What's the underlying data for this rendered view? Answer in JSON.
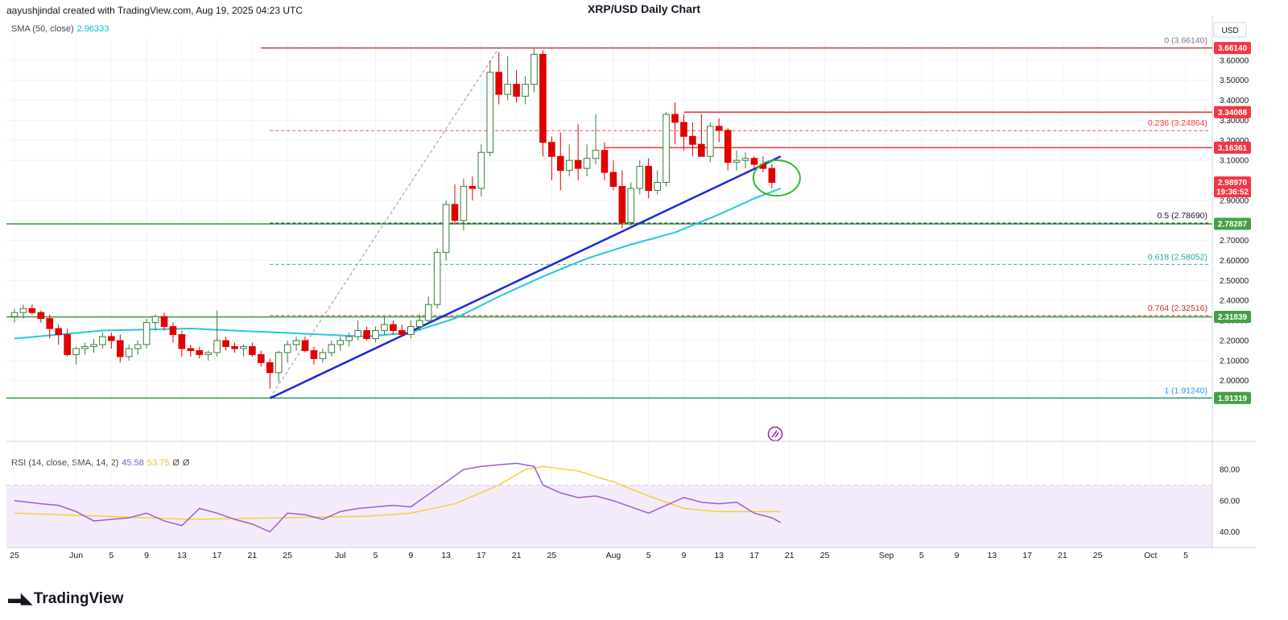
{
  "header": {
    "attribution": "aayushjindal created with TradingView.com, Aug 19, 2025 04:23 UTC",
    "title": "XRP/USD Daily Chart"
  },
  "indicators": {
    "sma_label": "SMA (50, close)",
    "sma_value": "2.96333",
    "rsi_label": "RSI (14, close, SMA, 14, 2)",
    "rsi_value": "45.58",
    "rsi_sma_value": "53.75",
    "rsi_extra_1": "Ø",
    "rsi_extra_2": "Ø"
  },
  "axis": {
    "currency": "USD",
    "price_ticks": [
      "2.00000",
      "2.10000",
      "2.20000",
      "2.30000",
      "2.40000",
      "2.50000",
      "2.60000",
      "2.70000",
      "2.80000",
      "2.90000",
      "3.10000",
      "3.20000",
      "3.30000",
      "3.40000",
      "3.50000",
      "3.60000"
    ],
    "rsi_ticks": [
      "40.00",
      "60.00",
      "80.00"
    ],
    "date_ticks": [
      {
        "label": "25",
        "bar": 0
      },
      {
        "label": "Jun",
        "bar": 7
      },
      {
        "label": "5",
        "bar": 11
      },
      {
        "label": "9",
        "bar": 15
      },
      {
        "label": "13",
        "bar": 19
      },
      {
        "label": "17",
        "bar": 23
      },
      {
        "label": "21",
        "bar": 27
      },
      {
        "label": "25",
        "bar": 31
      },
      {
        "label": "Jul",
        "bar": 37
      },
      {
        "label": "5",
        "bar": 41
      },
      {
        "label": "9",
        "bar": 45
      },
      {
        "label": "13",
        "bar": 49
      },
      {
        "label": "17",
        "bar": 53
      },
      {
        "label": "21",
        "bar": 57
      },
      {
        "label": "25",
        "bar": 61
      },
      {
        "label": "Aug",
        "bar": 68
      },
      {
        "label": "5",
        "bar": 72
      },
      {
        "label": "9",
        "bar": 76
      },
      {
        "label": "13",
        "bar": 80
      },
      {
        "label": "17",
        "bar": 84
      },
      {
        "label": "21",
        "bar": 88
      },
      {
        "label": "25",
        "bar": 92
      },
      {
        "label": "Sep",
        "bar": 99
      },
      {
        "label": "5",
        "bar": 103
      },
      {
        "label": "9",
        "bar": 107
      },
      {
        "label": "13",
        "bar": 111
      },
      {
        "label": "17",
        "bar": 115
      },
      {
        "label": "21",
        "bar": 119
      },
      {
        "label": "25",
        "bar": 123
      },
      {
        "label": "Oct",
        "bar": 129
      },
      {
        "label": "5",
        "bar": 133
      }
    ]
  },
  "price_tags": [
    {
      "label": "3.66140",
      "value": 3.6614,
      "color": "#f23645"
    },
    {
      "label": "3.34088",
      "value": 3.34088,
      "color": "#f23645"
    },
    {
      "label": "3.16361",
      "value": 3.16361,
      "color": "#f23645"
    },
    {
      "label": "2.98970",
      "value": 2.9897,
      "color": "#f23645",
      "sub": "19:36:52"
    },
    {
      "label": "2.78287",
      "value": 2.78287,
      "color": "#43a047"
    },
    {
      "label": "2.31839",
      "value": 2.31839,
      "color": "#43a047"
    },
    {
      "label": "1.91319",
      "value": 1.91319,
      "color": "#43a047"
    }
  ],
  "fibonacci": [
    {
      "label": "0 (3.66140)",
      "value": 3.6614,
      "color": "#787b86"
    },
    {
      "label": "0.236 (3.24864)",
      "value": 3.24864,
      "color": "#f23645"
    },
    {
      "label": "0.5 (2.78690)",
      "value": 2.7869,
      "color": "#131722"
    },
    {
      "label": "0.618 (2.58052)",
      "value": 2.58052,
      "color": "#26a69a"
    },
    {
      "label": "0.764 (2.32516)",
      "value": 2.32516,
      "color": "#d32f2f"
    },
    {
      "label": "1 (1.91240)",
      "value": 1.9124,
      "color": "#2196f3"
    }
  ],
  "horizontal_levels": [
    {
      "value": 3.6614,
      "from_bar": 28,
      "color": "#e53935"
    },
    {
      "value": 3.34088,
      "from_bar": 76,
      "color": "#e53935"
    },
    {
      "value": 3.16361,
      "from_bar": 67,
      "color": "#e53935"
    },
    {
      "value": 2.78287,
      "from_bar": -3,
      "color": "#43a047"
    },
    {
      "value": 2.31839,
      "from_bar": -3,
      "color": "#43a047"
    },
    {
      "value": 1.91319,
      "from_bar": -3,
      "color": "#43a047"
    }
  ],
  "trendline": {
    "from": {
      "bar": 29,
      "value": 1.912
    },
    "to": {
      "bar": 87,
      "value": 3.12
    },
    "color": "#1e2ad6"
  },
  "colors": {
    "up": "#ffffff",
    "up_border": "#3a7d3a",
    "down": "#e00000",
    "sma": "#26c6da",
    "rsi": "#9c5fc9",
    "rsi_sma": "#f2d13a",
    "rsi_band": "#f3ebfa",
    "circle": "#2eb82e"
  },
  "logo": "TradingView",
  "chart_data": {
    "type": "candlestick",
    "title": "XRP/USD Daily Chart",
    "currency": "USD",
    "ylim": [
      1.85,
      3.7
    ],
    "ohlc": [
      [
        2.32,
        2.36,
        2.29,
        2.34
      ],
      [
        2.34,
        2.38,
        2.31,
        2.36
      ],
      [
        2.36,
        2.38,
        2.33,
        2.34
      ],
      [
        2.34,
        2.35,
        2.29,
        2.31
      ],
      [
        2.31,
        2.33,
        2.21,
        2.26
      ],
      [
        2.26,
        2.28,
        2.18,
        2.23
      ],
      [
        2.23,
        2.26,
        2.12,
        2.13
      ],
      [
        2.13,
        2.17,
        2.08,
        2.16
      ],
      [
        2.16,
        2.19,
        2.13,
        2.17
      ],
      [
        2.17,
        2.21,
        2.14,
        2.18
      ],
      [
        2.18,
        2.24,
        2.16,
        2.22
      ],
      [
        2.22,
        2.24,
        2.16,
        2.2
      ],
      [
        2.2,
        2.23,
        2.09,
        2.12
      ],
      [
        2.12,
        2.18,
        2.1,
        2.16
      ],
      [
        2.16,
        2.2,
        2.13,
        2.18
      ],
      [
        2.18,
        2.31,
        2.16,
        2.29
      ],
      [
        2.29,
        2.33,
        2.25,
        2.32
      ],
      [
        2.32,
        2.34,
        2.25,
        2.27
      ],
      [
        2.27,
        2.29,
        2.19,
        2.23
      ],
      [
        2.23,
        2.25,
        2.12,
        2.16
      ],
      [
        2.16,
        2.18,
        2.12,
        2.15
      ],
      [
        2.15,
        2.17,
        2.11,
        2.13
      ],
      [
        2.13,
        2.15,
        2.1,
        2.14
      ],
      [
        2.14,
        2.35,
        2.12,
        2.2
      ],
      [
        2.2,
        2.22,
        2.15,
        2.17
      ],
      [
        2.17,
        2.19,
        2.14,
        2.16
      ],
      [
        2.16,
        2.18,
        2.12,
        2.17
      ],
      [
        2.17,
        2.19,
        2.12,
        2.13
      ],
      [
        2.13,
        2.15,
        2.07,
        2.09
      ],
      [
        2.09,
        2.11,
        1.96,
        2.04
      ],
      [
        2.04,
        2.15,
        1.99,
        2.14
      ],
      [
        2.14,
        2.2,
        2.09,
        2.18
      ],
      [
        2.18,
        2.22,
        2.15,
        2.2
      ],
      [
        2.2,
        2.22,
        2.14,
        2.15
      ],
      [
        2.15,
        2.17,
        2.08,
        2.11
      ],
      [
        2.11,
        2.16,
        2.09,
        2.14
      ],
      [
        2.14,
        2.2,
        2.12,
        2.18
      ],
      [
        2.18,
        2.22,
        2.15,
        2.2
      ],
      [
        2.2,
        2.24,
        2.17,
        2.22
      ],
      [
        2.22,
        2.3,
        2.2,
        2.25
      ],
      [
        2.25,
        2.27,
        2.2,
        2.21
      ],
      [
        2.21,
        2.27,
        2.19,
        2.25
      ],
      [
        2.25,
        2.32,
        2.23,
        2.28
      ],
      [
        2.28,
        2.3,
        2.23,
        2.25
      ],
      [
        2.25,
        2.28,
        2.22,
        2.23
      ],
      [
        2.23,
        2.3,
        2.21,
        2.27
      ],
      [
        2.27,
        2.33,
        2.25,
        2.3
      ],
      [
        2.3,
        2.42,
        2.28,
        2.38
      ],
      [
        2.38,
        2.66,
        2.36,
        2.64
      ],
      [
        2.64,
        2.9,
        2.6,
        2.88
      ],
      [
        2.88,
        2.98,
        2.78,
        2.8
      ],
      [
        2.8,
        3.01,
        2.75,
        2.97
      ],
      [
        2.97,
        3.02,
        2.9,
        2.96
      ],
      [
        2.96,
        3.18,
        2.92,
        3.14
      ],
      [
        3.14,
        3.6,
        3.12,
        3.54
      ],
      [
        3.54,
        3.64,
        3.38,
        3.43
      ],
      [
        3.43,
        3.62,
        3.4,
        3.48
      ],
      [
        3.48,
        3.55,
        3.39,
        3.42
      ],
      [
        3.42,
        3.52,
        3.38,
        3.48
      ],
      [
        3.48,
        3.66,
        3.44,
        3.63
      ],
      [
        3.63,
        3.65,
        3.12,
        3.19
      ],
      [
        3.19,
        3.22,
        3.0,
        3.12
      ],
      [
        3.12,
        3.24,
        2.95,
        3.05
      ],
      [
        3.05,
        3.18,
        3.02,
        3.1
      ],
      [
        3.1,
        3.28,
        3.0,
        3.06
      ],
      [
        3.06,
        3.18,
        3.02,
        3.11
      ],
      [
        3.11,
        3.33,
        3.08,
        3.15
      ],
      [
        3.15,
        3.19,
        3.0,
        3.04
      ],
      [
        3.04,
        3.1,
        2.95,
        2.97
      ],
      [
        2.97,
        3.05,
        2.76,
        2.79
      ],
      [
        2.79,
        2.99,
        2.77,
        2.96
      ],
      [
        2.96,
        3.1,
        2.93,
        3.07
      ],
      [
        3.07,
        3.11,
        2.91,
        2.95
      ],
      [
        2.95,
        3.05,
        2.93,
        2.99
      ],
      [
        2.99,
        3.34,
        2.97,
        3.33
      ],
      [
        3.33,
        3.39,
        3.18,
        3.29
      ],
      [
        3.29,
        3.33,
        3.15,
        3.22
      ],
      [
        3.22,
        3.29,
        3.12,
        3.18
      ],
      [
        3.18,
        3.33,
        3.12,
        3.12
      ],
      [
        3.12,
        3.29,
        3.09,
        3.27
      ],
      [
        3.27,
        3.31,
        3.19,
        3.25
      ],
      [
        3.25,
        3.26,
        3.05,
        3.09
      ],
      [
        3.09,
        3.15,
        3.05,
        3.1
      ],
      [
        3.1,
        3.14,
        3.06,
        3.11
      ],
      [
        3.11,
        3.12,
        3.06,
        3.08
      ],
      [
        3.08,
        3.12,
        3.04,
        3.06
      ],
      [
        3.06,
        3.08,
        2.96,
        2.99
      ]
    ],
    "sma": [
      [
        0,
        2.21
      ],
      [
        10,
        2.25
      ],
      [
        20,
        2.26
      ],
      [
        30,
        2.24
      ],
      [
        40,
        2.22
      ],
      [
        45,
        2.24
      ],
      [
        50,
        2.31
      ],
      [
        55,
        2.42
      ],
      [
        60,
        2.52
      ],
      [
        65,
        2.61
      ],
      [
        70,
        2.68
      ],
      [
        75,
        2.74
      ],
      [
        80,
        2.83
      ],
      [
        84,
        2.91
      ],
      [
        87,
        2.96
      ]
    ],
    "rsi": [
      [
        0,
        60
      ],
      [
        3,
        58
      ],
      [
        5,
        57
      ],
      [
        7,
        53
      ],
      [
        9,
        47
      ],
      [
        11,
        48
      ],
      [
        13,
        49
      ],
      [
        15,
        52
      ],
      [
        17,
        47
      ],
      [
        19,
        44
      ],
      [
        21,
        55
      ],
      [
        23,
        52
      ],
      [
        25,
        48
      ],
      [
        27,
        45
      ],
      [
        29,
        40
      ],
      [
        31,
        52
      ],
      [
        33,
        51
      ],
      [
        35,
        48
      ],
      [
        37,
        53
      ],
      [
        39,
        55
      ],
      [
        41,
        56
      ],
      [
        43,
        57
      ],
      [
        45,
        56
      ],
      [
        47,
        64
      ],
      [
        49,
        72
      ],
      [
        51,
        80
      ],
      [
        53,
        82
      ],
      [
        55,
        83
      ],
      [
        57,
        84
      ],
      [
        59,
        82
      ],
      [
        60,
        70
      ],
      [
        62,
        65
      ],
      [
        64,
        62
      ],
      [
        66,
        63
      ],
      [
        68,
        60
      ],
      [
        70,
        56
      ],
      [
        72,
        52
      ],
      [
        74,
        57
      ],
      [
        76,
        62
      ],
      [
        78,
        59
      ],
      [
        80,
        58
      ],
      [
        82,
        59
      ],
      [
        84,
        52
      ],
      [
        86,
        49
      ],
      [
        87,
        46
      ]
    ],
    "rsi_sma": [
      [
        0,
        52
      ],
      [
        10,
        50
      ],
      [
        20,
        48
      ],
      [
        30,
        49
      ],
      [
        40,
        50
      ],
      [
        45,
        52
      ],
      [
        50,
        58
      ],
      [
        55,
        70
      ],
      [
        58,
        80
      ],
      [
        60,
        82
      ],
      [
        64,
        79
      ],
      [
        68,
        72
      ],
      [
        72,
        63
      ],
      [
        76,
        55
      ],
      [
        80,
        53
      ],
      [
        84,
        53
      ],
      [
        87,
        53
      ]
    ],
    "rsi_ylim": [
      32,
      94
    ]
  }
}
